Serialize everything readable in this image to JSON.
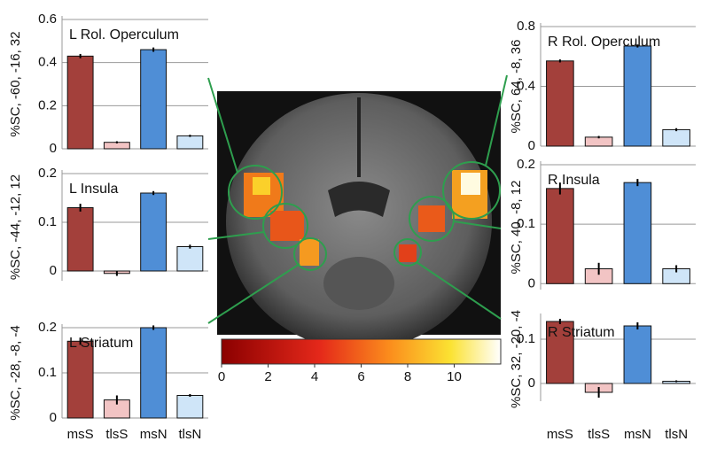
{
  "chart_data": [
    {
      "type": "bar",
      "title": "L Rol. Operculum",
      "ylabel": "%SC, -60, -16, 32",
      "categories": [
        null,
        null,
        null,
        null
      ],
      "values": [
        0.43,
        0.03,
        0.46,
        0.06
      ],
      "errors": [
        0.01,
        0.005,
        0.01,
        0.005
      ],
      "colors": [
        "#a3403b",
        "#f2c4c4",
        "#4f8ed6",
        "#cfe5f8"
      ],
      "ylim": [
        0,
        0.6
      ],
      "yticks": [
        0,
        0.2,
        0.4,
        0.6
      ],
      "grid": true
    },
    {
      "type": "bar",
      "title": "L Insula",
      "ylabel": "%SC, -44, -12, 12",
      "categories": [
        null,
        null,
        null,
        null
      ],
      "values": [
        0.13,
        -0.005,
        0.16,
        0.05
      ],
      "errors": [
        0.008,
        0.005,
        0.004,
        0.004
      ],
      "colors": [
        "#a3403b",
        "#f2c4c4",
        "#4f8ed6",
        "#cfe5f8"
      ],
      "ylim": [
        -0.02,
        0.2
      ],
      "yticks": [
        0,
        0.1,
        0.2
      ],
      "grid": true
    },
    {
      "type": "bar",
      "title": "L Striatum",
      "ylabel": "%SC, -28, -8, -4",
      "categories": [
        "msS",
        "tlsS",
        "msN",
        "tlsN"
      ],
      "values": [
        0.17,
        0.04,
        0.2,
        0.05
      ],
      "errors": [
        0.008,
        0.01,
        0.005,
        0.003
      ],
      "colors": [
        "#a3403b",
        "#f2c4c4",
        "#4f8ed6",
        "#cfe5f8"
      ],
      "ylim": [
        0,
        0.2
      ],
      "yticks": [
        0,
        0.1,
        0.2
      ],
      "grid": true
    },
    {
      "type": "bar",
      "title": "R Rol. Operculum",
      "ylabel": "%SC, 64, -8, 36",
      "categories": [
        null,
        null,
        null,
        null
      ],
      "values": [
        0.57,
        0.06,
        0.67,
        0.11
      ],
      "errors": [
        0.01,
        0.008,
        0.01,
        0.01
      ],
      "colors": [
        "#a3403b",
        "#f2c4c4",
        "#4f8ed6",
        "#cfe5f8"
      ],
      "ylim": [
        0,
        0.8
      ],
      "yticks": [
        0,
        0.4,
        0.8
      ],
      "grid": true
    },
    {
      "type": "bar",
      "title": "R Insula",
      "ylabel": "%SC, 40, -8, 12",
      "categories": [
        null,
        null,
        null,
        null
      ],
      "values": [
        0.16,
        0.025,
        0.17,
        0.025
      ],
      "errors": [
        0.01,
        0.01,
        0.006,
        0.006
      ],
      "colors": [
        "#a3403b",
        "#f2c4c4",
        "#4f8ed6",
        "#cfe5f8"
      ],
      "ylim": [
        -0.01,
        0.2
      ],
      "yticks": [
        0,
        0.1,
        0.2
      ],
      "grid": true
    },
    {
      "type": "bar",
      "title": "R Striatum",
      "ylabel": "%SC, 32, -20, -4",
      "categories": [
        "msS",
        "tlsS",
        "msN",
        "tlsN"
      ],
      "values": [
        0.14,
        -0.02,
        0.13,
        0.005
      ],
      "errors": [
        0.006,
        0.012,
        0.008,
        0.002
      ],
      "colors": [
        "#a3403b",
        "#f2c4c4",
        "#4f8ed6",
        "#cfe5f8"
      ],
      "ylim": [
        -0.04,
        0.15
      ],
      "yticks": [
        0,
        0.1
      ],
      "grid": true
    },
    {
      "type": "colorbar",
      "xlim": [
        0,
        12
      ],
      "xticks": [
        0,
        2,
        4,
        6,
        8,
        10
      ]
    }
  ]
}
